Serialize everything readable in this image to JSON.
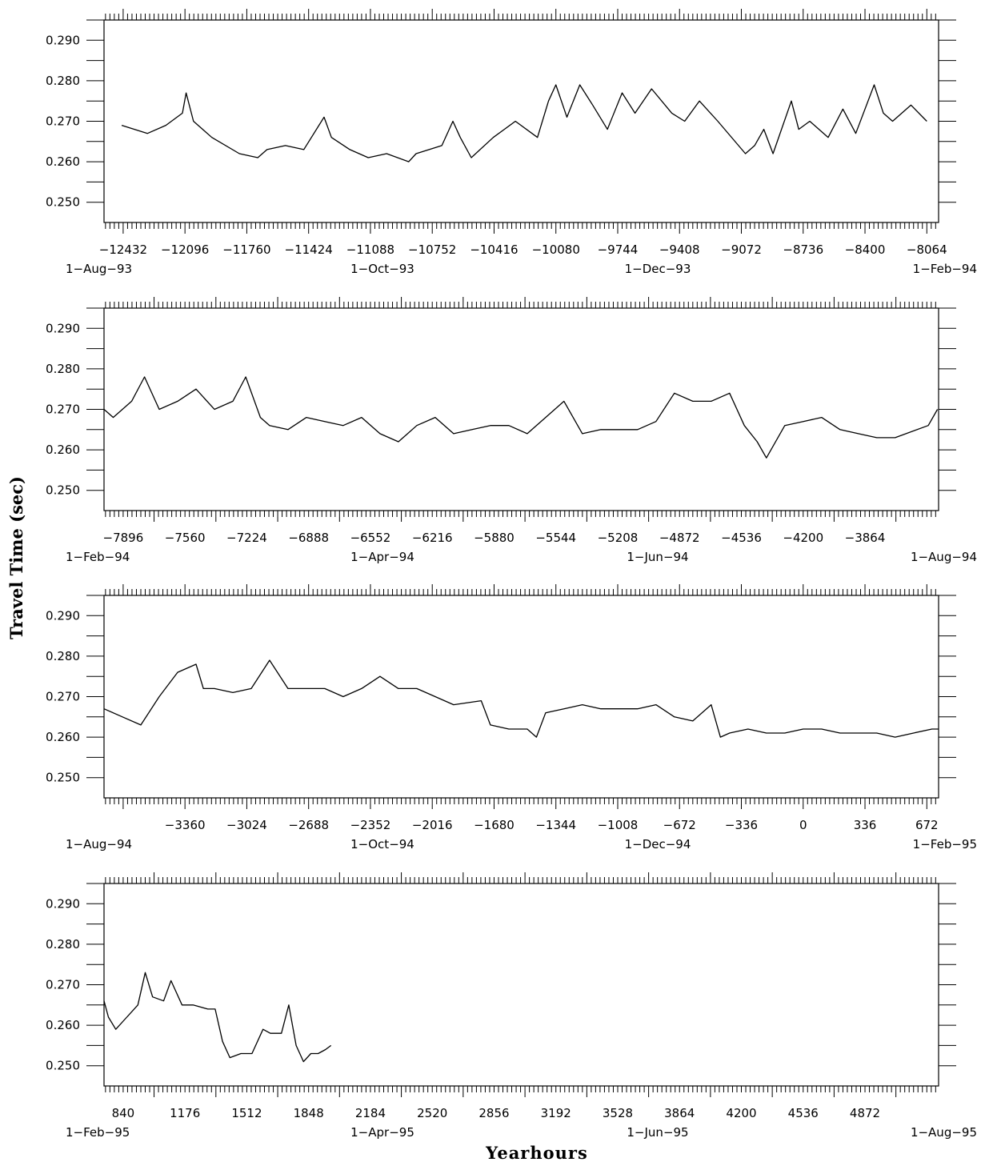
{
  "chart_data": {
    "type": "line",
    "ylabel": "Travel Time (sec)",
    "xlabel": "Yearhours",
    "y_ticks": [
      "0.290",
      "0.280",
      "0.270",
      "0.260",
      "0.250"
    ],
    "panels": [
      {
        "x_range": [
          -12536,
          -8000
        ],
        "x_ticks": [
          "-12432",
          "-12096",
          "-11760",
          "-11424",
          "-11088",
          "-10752",
          "-10416",
          "-10080",
          "-9744",
          "-9408",
          "-9072",
          "-8736",
          "-8400",
          "-8064"
        ],
        "dates": [
          "1-Aug-93",
          "1-Oct-93",
          "1-Dec-93",
          "1-Feb-94"
        ],
        "ylim": [
          0.245,
          0.295
        ],
        "series": [
          {
            "x": [
              -12440,
              -12300,
              -12200,
              -12110,
              -12090,
              -12050,
              -11950,
              -11800,
              -11700,
              -11650,
              -11550,
              -11450,
              -11340,
              -11300,
              -11200,
              -11100,
              -11000,
              -10880,
              -10840,
              -10700,
              -10640,
              -10600,
              -10540,
              -10420,
              -10360,
              -10300,
              -10180,
              -10120,
              -10080,
              -10020,
              -9950,
              -9880,
              -9800,
              -9720,
              -9650,
              -9560,
              -9450,
              -9380,
              -9300,
              -9200,
              -9050,
              -9000,
              -8950,
              -8900,
              -8800,
              -8760,
              -8700,
              -8600,
              -8520,
              -8450,
              -8350,
              -8300,
              -8250,
              -8150,
              -8064
            ],
            "y": [
              0.269,
              0.267,
              0.269,
              0.272,
              0.277,
              0.27,
              0.266,
              0.262,
              0.261,
              0.263,
              0.264,
              0.263,
              0.271,
              0.266,
              0.263,
              0.261,
              0.262,
              0.26,
              0.262,
              0.264,
              0.27,
              0.266,
              0.261,
              0.266,
              0.268,
              0.27,
              0.266,
              0.275,
              0.279,
              0.271,
              0.279,
              0.274,
              0.268,
              0.277,
              0.272,
              0.278,
              0.272,
              0.27,
              0.275,
              0.27,
              0.262,
              0.264,
              0.268,
              0.262,
              0.275,
              0.268,
              0.27,
              0.266,
              0.273,
              0.267,
              0.279,
              0.272,
              0.27,
              0.274,
              0.27
            ]
          }
        ]
      },
      {
        "x_range": [
          -8000,
          -3464
        ],
        "x_ticks": [
          "-7896",
          "-7560",
          "-7224",
          "-6888",
          "-6552",
          "-6216",
          "-5880",
          "-5544",
          "-5208",
          "-4872",
          "-4536",
          "-4200",
          "-3864"
        ],
        "dates": [
          "1-Feb-94",
          "1-Apr-94",
          "1-Jun-94",
          "1-Aug-94"
        ],
        "ylim": [
          0.245,
          0.295
        ],
        "series": [
          {
            "x": [
              -8000,
              -7950,
              -7850,
              -7780,
              -7700,
              -7600,
              -7500,
              -7400,
              -7300,
              -7230,
              -7150,
              -7100,
              -7000,
              -6900,
              -6800,
              -6700,
              -6600,
              -6500,
              -6400,
              -6300,
              -6200,
              -6100,
              -6000,
              -5900,
              -5800,
              -5700,
              -5600,
              -5500,
              -5400,
              -5300,
              -5200,
              -5100,
              -5000,
              -4900,
              -4800,
              -4700,
              -4600,
              -4520,
              -4450,
              -4400,
              -4300,
              -4200,
              -4100,
              -4000,
              -3900,
              -3800,
              -3700,
              -3520,
              -3470
            ],
            "y": [
              0.27,
              0.268,
              0.272,
              0.278,
              0.27,
              0.272,
              0.275,
              0.27,
              0.272,
              0.278,
              0.268,
              0.266,
              0.265,
              0.268,
              0.267,
              0.266,
              0.268,
              0.264,
              0.262,
              0.266,
              0.268,
              0.264,
              0.265,
              0.266,
              0.266,
              0.264,
              0.268,
              0.272,
              0.264,
              0.265,
              0.265,
              0.265,
              0.267,
              0.274,
              0.272,
              0.272,
              0.274,
              0.266,
              0.262,
              0.258,
              0.266,
              0.267,
              0.268,
              0.265,
              0.264,
              0.263,
              0.263,
              0.266,
              0.27
            ]
          }
        ]
      },
      {
        "x_range": [
          -3800,
          736
        ],
        "x_ticks": [
          "-3360",
          "-3024",
          "-2688",
          "-2352",
          "-2016",
          "-1680",
          "-1344",
          "-1008",
          "-672",
          "-336",
          "0",
          "336",
          "672"
        ],
        "dates": [
          "1-Aug-94",
          "1-Oct-94",
          "1-Dec-94",
          "1-Feb-95"
        ],
        "ylim": [
          0.245,
          0.295
        ],
        "series": [
          {
            "x": [
              -3800,
              -3700,
              -3600,
              -3500,
              -3400,
              -3300,
              -3260,
              -3200,
              -3100,
              -3000,
              -2900,
              -2800,
              -2700,
              -2600,
              -2500,
              -2400,
              -2300,
              -2200,
              -2100,
              -2000,
              -1900,
              -1750,
              -1700,
              -1600,
              -1500,
              -1450,
              -1400,
              -1300,
              -1200,
              -1100,
              -1000,
              -900,
              -800,
              -700,
              -600,
              -500,
              -450,
              -400,
              -300,
              -200,
              -100,
              0,
              100,
              200,
              300,
              400,
              500,
              600,
              700,
              736
            ],
            "y": [
              0.267,
              0.265,
              0.263,
              0.27,
              0.276,
              0.278,
              0.272,
              0.272,
              0.271,
              0.272,
              0.279,
              0.272,
              0.272,
              0.272,
              0.27,
              0.272,
              0.275,
              0.272,
              0.272,
              0.27,
              0.268,
              0.269,
              0.263,
              0.262,
              0.262,
              0.26,
              0.266,
              0.267,
              0.268,
              0.267,
              0.267,
              0.267,
              0.268,
              0.265,
              0.264,
              0.268,
              0.26,
              0.261,
              0.262,
              0.261,
              0.261,
              0.262,
              0.262,
              0.261,
              0.261,
              0.261,
              0.26,
              0.261,
              0.262,
              0.262
            ]
          }
        ]
      },
      {
        "x_range": [
          736,
          5272
        ],
        "x_ticks": [
          "840",
          "1176",
          "1512",
          "1848",
          "2184",
          "2520",
          "2856",
          "3192",
          "3528",
          "3864",
          "4200",
          "4536",
          "4872"
        ],
        "dates": [
          "1-Feb-95",
          "1-Apr-95",
          "1-Jun-95",
          "1-Aug-95"
        ],
        "ylim": [
          0.245,
          0.295
        ],
        "series": [
          {
            "x": [
              736,
              760,
              800,
              860,
              920,
              960,
              1000,
              1060,
              1100,
              1160,
              1220,
              1300,
              1340,
              1380,
              1420,
              1480,
              1540,
              1600,
              1640,
              1700,
              1740,
              1780,
              1820,
              1860,
              1900,
              1940,
              1970
            ],
            "y": [
              0.266,
              0.262,
              0.259,
              0.262,
              0.265,
              0.273,
              0.267,
              0.266,
              0.271,
              0.265,
              0.265,
              0.264,
              0.264,
              0.256,
              0.252,
              0.253,
              0.253,
              0.259,
              0.258,
              0.258,
              0.265,
              0.255,
              0.251,
              0.253,
              0.253,
              0.254,
              0.255
            ]
          }
        ]
      }
    ]
  }
}
